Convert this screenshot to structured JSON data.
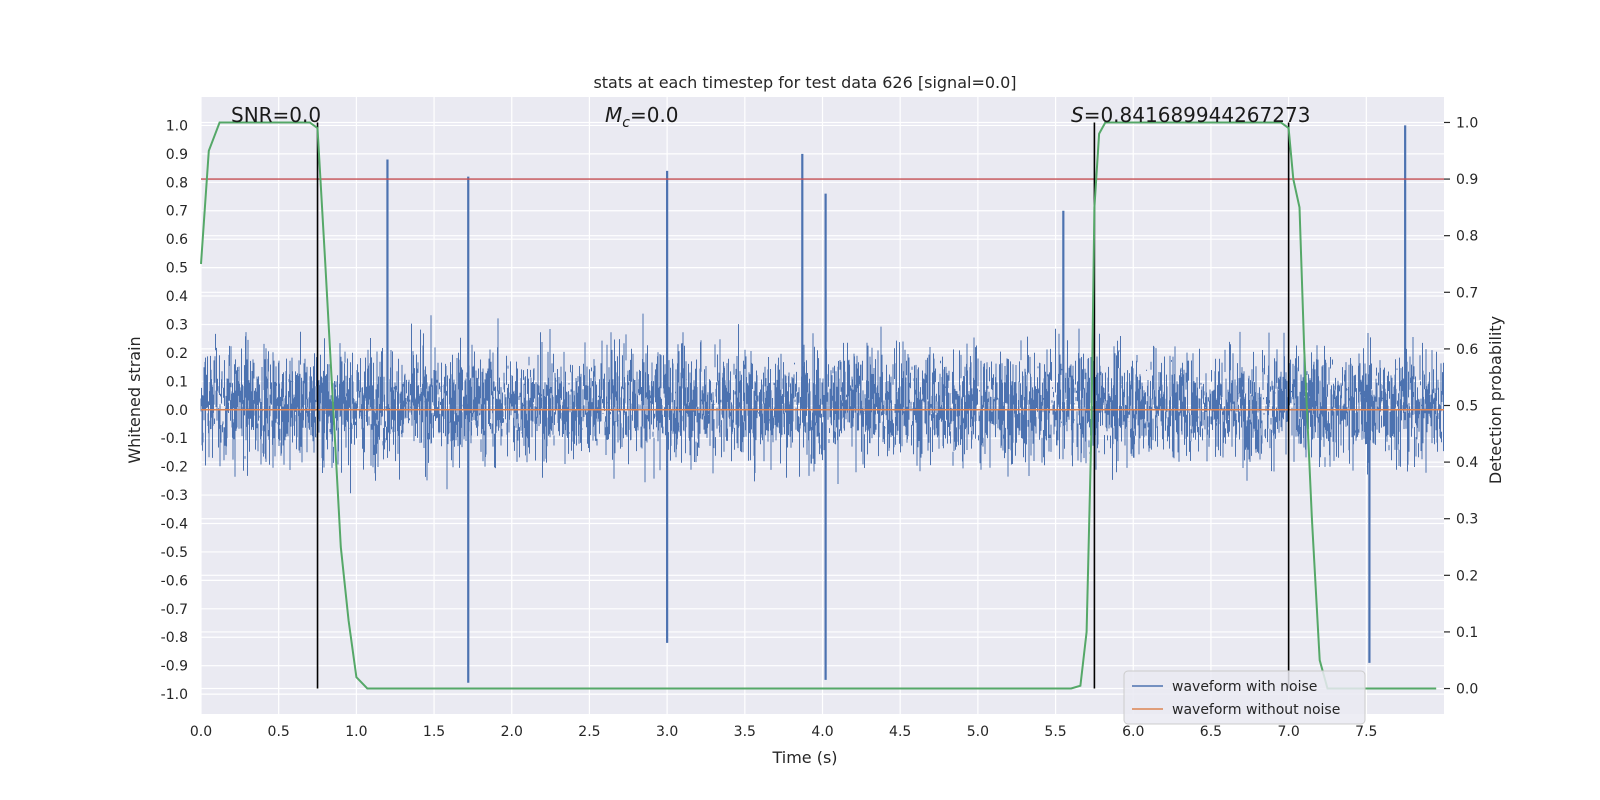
{
  "chart_data": {
    "type": "line",
    "title": "stats at each timestep for test data 626 [signal=0.0]",
    "xlabel": "Time (s)",
    "ylabel_left": "Whitened strain",
    "ylabel_right": "Detection probability",
    "xlim": [
      0.0,
      8.0
    ],
    "ylim_left": [
      -1.07,
      1.1
    ],
    "ylim_right": [
      -0.045,
      1.045
    ],
    "x_ticks": [
      "0.0",
      "0.5",
      "1.0",
      "1.5",
      "2.0",
      "2.5",
      "3.0",
      "3.5",
      "4.0",
      "4.5",
      "5.0",
      "5.5",
      "6.0",
      "6.5",
      "7.0",
      "7.5"
    ],
    "y_left_ticks": [
      "1.0",
      "0.9",
      "0.8",
      "0.7",
      "0.6",
      "0.5",
      "0.4",
      "0.3",
      "0.2",
      "0.1",
      "0.0",
      "-0.1",
      "-0.2",
      "-0.3",
      "-0.4",
      "-0.5",
      "-0.6",
      "-0.7",
      "-0.8",
      "-0.9",
      "-1.0"
    ],
    "y_right_ticks": [
      "1.0",
      "0.9",
      "0.8",
      "0.7",
      "0.6",
      "0.5",
      "0.4",
      "0.3",
      "0.2",
      "0.1",
      "0.0"
    ],
    "annotations": {
      "snr_label": "SNR=0.0",
      "mc_sym": "M",
      "mc_sub": "c",
      "mc_val": "=0.0",
      "s_sym": "S",
      "s_val": "=0.841689944267273"
    },
    "threshold": 0.9,
    "detection_markers_x": [
      0.75,
      5.75,
      7.0
    ],
    "grid": true,
    "legend_position": "lower-right",
    "series": [
      {
        "name": "waveform with noise",
        "color": "#4c72b0",
        "envelope": "dense noise, typical range -0.6..0.6",
        "spikes_x": [
          1.2,
          1.72,
          1.72,
          3.0,
          3.0,
          3.87,
          4.02,
          4.02,
          5.55,
          7.52,
          7.75
        ],
        "spikes_y": [
          0.88,
          0.82,
          -0.96,
          0.84,
          -0.82,
          0.9,
          0.76,
          -0.95,
          0.7,
          -0.89,
          1.0
        ]
      },
      {
        "name": "waveform without noise",
        "color": "#dd8452",
        "constant": 0.0
      },
      {
        "name": "detection probability",
        "color": "#55a868",
        "axis": "right",
        "x": [
          0.0,
          0.05,
          0.12,
          0.2,
          0.4,
          0.6,
          0.7,
          0.75,
          0.8,
          0.85,
          0.9,
          0.95,
          1.0,
          1.07,
          1.5,
          3.0,
          5.0,
          5.6,
          5.66,
          5.7,
          5.73,
          5.75,
          5.78,
          5.82,
          6.0,
          6.5,
          6.95,
          7.0,
          7.03,
          7.07,
          7.1,
          7.15,
          7.2,
          7.25,
          7.5,
          7.95
        ],
        "y": [
          0.75,
          0.95,
          1.0,
          1.0,
          1.0,
          1.0,
          1.0,
          0.99,
          0.75,
          0.5,
          0.25,
          0.12,
          0.02,
          0.0,
          0.0,
          0.0,
          0.0,
          0.0,
          0.005,
          0.1,
          0.45,
          0.85,
          0.98,
          1.0,
          1.0,
          1.0,
          1.0,
          0.99,
          0.9,
          0.85,
          0.6,
          0.3,
          0.05,
          0.0,
          0.0,
          0.0
        ]
      }
    ]
  }
}
